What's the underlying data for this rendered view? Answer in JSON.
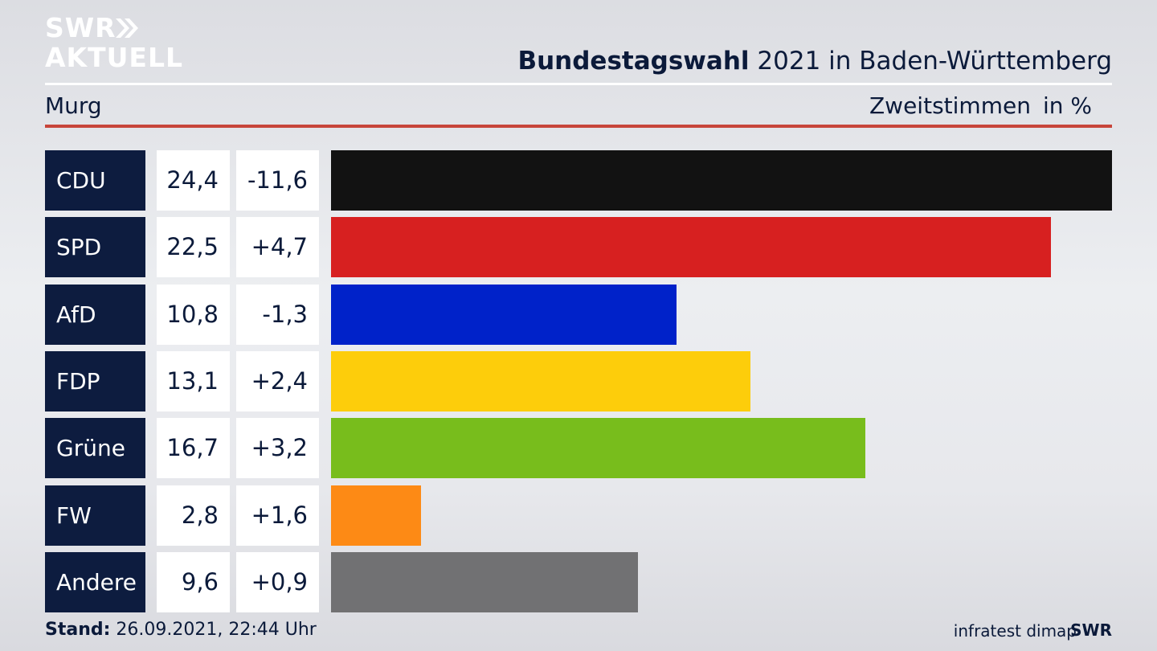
{
  "brand": {
    "line1": "SWR",
    "line2": "AKTUELL",
    "footer_logo": "SWR"
  },
  "header": {
    "title_bold": "Bundestagswahl",
    "title_rest": " 2021 in Baden-Württemberg",
    "region": "Murg",
    "measure": "Zweitstimmen",
    "unit": "in %"
  },
  "colors": {
    "navy": "#0d1c3f",
    "accent_red": "#c8453a",
    "CDU": "#121212",
    "SPD": "#d72020",
    "AfD": "#0022c9",
    "FDP": "#fdcd0b",
    "Grüne": "#78bd1c",
    "FW": "#fd8a15",
    "Andere": "#717173"
  },
  "chart_data": {
    "type": "bar",
    "orientation": "horizontal",
    "categories": [
      "CDU",
      "SPD",
      "AfD",
      "FDP",
      "Grüne",
      "FW",
      "Andere"
    ],
    "values": [
      24.4,
      22.5,
      10.8,
      13.1,
      16.7,
      2.8,
      9.6
    ],
    "value_labels": [
      "24,4",
      "22,5",
      "10,8",
      "13,1",
      "16,7",
      "2,8",
      "9,6"
    ],
    "change_labels": [
      "-11,6",
      "+4,7",
      "-1,3",
      "+2,4",
      "+3,2",
      "+1,6",
      "+0,9"
    ],
    "changes": [
      -11.6,
      4.7,
      -1.3,
      2.4,
      3.2,
      1.6,
      0.9
    ],
    "unit": "%",
    "grid": false,
    "legend": "none"
  },
  "footer": {
    "stand_label": "Stand:",
    "stand_value": " 26.09.2021, 22:44 Uhr",
    "source": "infratest dimap"
  }
}
